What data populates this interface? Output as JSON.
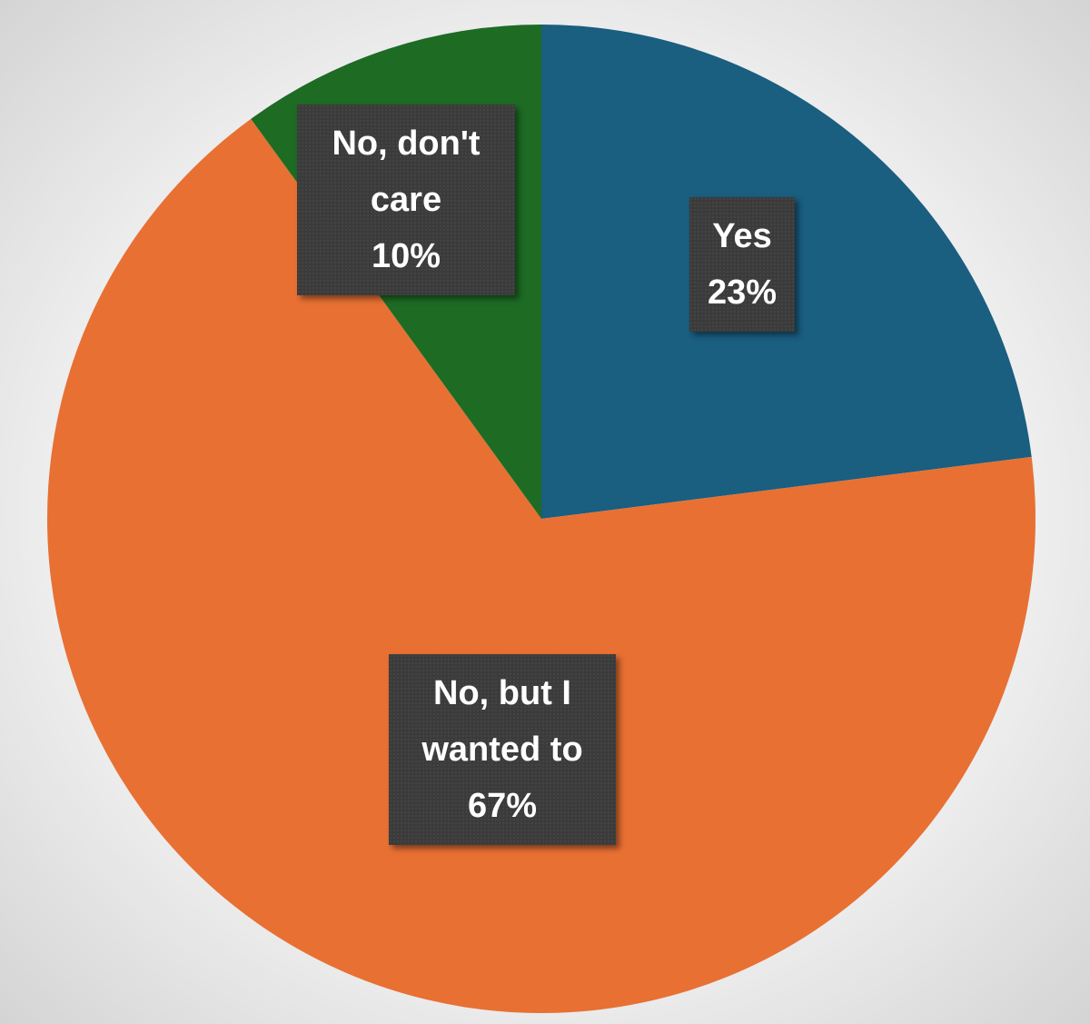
{
  "chart_data": {
    "type": "pie",
    "categories": [
      "Yes",
      "No, but I wanted to",
      "No, don't care"
    ],
    "values": [
      23,
      67,
      10
    ],
    "value_labels": [
      "23%",
      "67%",
      "10%"
    ],
    "colors": [
      "#1a5e80",
      "#e87033",
      "#1e6b24"
    ]
  }
}
